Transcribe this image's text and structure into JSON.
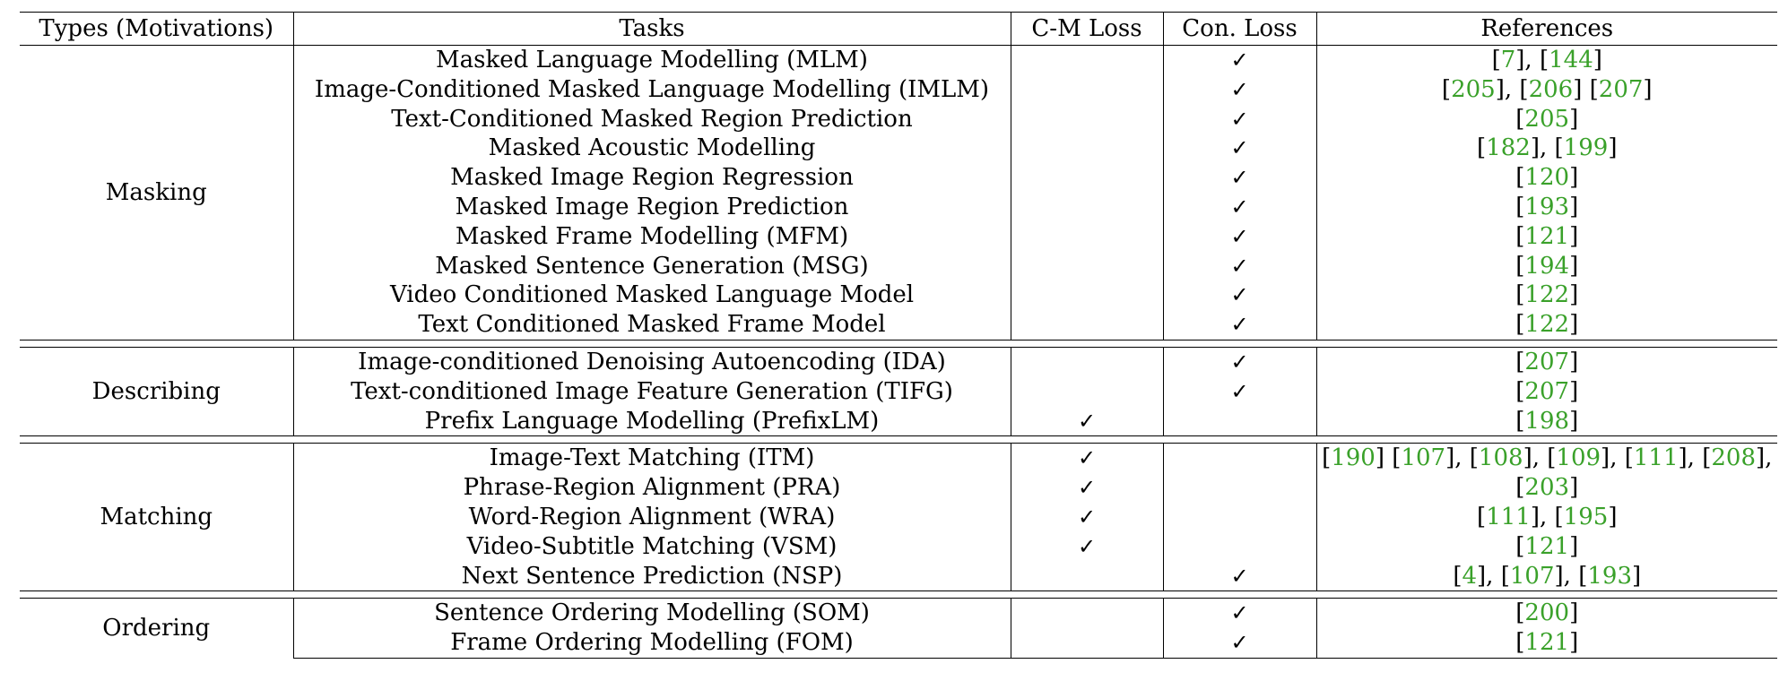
{
  "headers": {
    "type": "Types (Motivations)",
    "task": "Tasks",
    "cm": "C-M Loss",
    "con": "Con. Loss",
    "refs": "References"
  },
  "check_glyph": "✓",
  "groups": [
    {
      "type": "Masking",
      "rows": [
        {
          "task": "Masked Language Modelling (MLM)",
          "cm": false,
          "con": true,
          "refs": [
            [
              "[",
              "7",
              "], "
            ],
            [
              "[",
              "144",
              "]"
            ]
          ]
        },
        {
          "task": "Image-Conditioned Masked Language Modelling (IMLM)",
          "cm": false,
          "con": true,
          "refs": [
            [
              "[",
              "205",
              "], "
            ],
            [
              "[",
              "206",
              "] "
            ],
            [
              "[",
              "207",
              "]"
            ]
          ]
        },
        {
          "task": "Text-Conditioned Masked Region Prediction",
          "cm": false,
          "con": true,
          "refs": [
            [
              "[",
              "205",
              "]"
            ]
          ]
        },
        {
          "task": "Masked Acoustic Modelling",
          "cm": false,
          "con": true,
          "refs": [
            [
              "[",
              "182",
              "], "
            ],
            [
              "[",
              "199",
              "]"
            ]
          ]
        },
        {
          "task": "Masked Image Region Regression",
          "cm": false,
          "con": true,
          "refs": [
            [
              "[",
              "120",
              "]"
            ]
          ]
        },
        {
          "task": "Masked Image Region Prediction",
          "cm": false,
          "con": true,
          "refs": [
            [
              "[",
              "193",
              "]"
            ]
          ]
        },
        {
          "task": "Masked Frame Modelling (MFM)",
          "cm": false,
          "con": true,
          "refs": [
            [
              "[",
              "121",
              "]"
            ]
          ]
        },
        {
          "task": "Masked Sentence Generation (MSG)",
          "cm": false,
          "con": true,
          "refs": [
            [
              "[",
              "194",
              "]"
            ]
          ]
        },
        {
          "task": "Video Conditioned Masked Language Model",
          "cm": false,
          "con": true,
          "refs": [
            [
              "[",
              "122",
              "]"
            ]
          ]
        },
        {
          "task": "Text Conditioned Masked Frame Model",
          "cm": false,
          "con": true,
          "refs": [
            [
              "[",
              "122",
              "]"
            ]
          ]
        }
      ]
    },
    {
      "type": "Describing",
      "rows": [
        {
          "task": "Image-conditioned Denoising Autoencoding (IDA)",
          "cm": false,
          "con": true,
          "refs": [
            [
              "[",
              "207",
              "]"
            ]
          ]
        },
        {
          "task": "Text-conditioned Image Feature Generation (TIFG)",
          "cm": false,
          "con": true,
          "refs": [
            [
              "[",
              "207",
              "]"
            ]
          ]
        },
        {
          "task": "Prefix Language Modelling (PrefixLM)",
          "cm": true,
          "con": false,
          "refs": [
            [
              "[",
              "198",
              "]"
            ]
          ]
        }
      ]
    },
    {
      "type": "Matching",
      "rows": [
        {
          "task": "Image-Text Matching (ITM)",
          "cm": true,
          "con": false,
          "refs": [
            [
              "[",
              "190",
              "] "
            ],
            [
              "[",
              "107",
              "], "
            ],
            [
              "[",
              "108",
              "], "
            ],
            [
              "[",
              "109",
              "], "
            ],
            [
              "[",
              "111",
              "], "
            ],
            [
              "[",
              "208",
              "],"
            ]
          ]
        },
        {
          "task": "Phrase-Region Alignment (PRA)",
          "cm": true,
          "con": false,
          "refs": [
            [
              "[",
              "203",
              "]"
            ]
          ]
        },
        {
          "task": "Word-Region Alignment (WRA)",
          "cm": true,
          "con": false,
          "refs": [
            [
              "[",
              "111",
              "], "
            ],
            [
              "[",
              "195",
              "]"
            ]
          ]
        },
        {
          "task": "Video-Subtitle Matching (VSM)",
          "cm": true,
          "con": false,
          "refs": [
            [
              "[",
              "121",
              "]"
            ]
          ]
        },
        {
          "task": "Next Sentence Prediction (NSP)",
          "cm": false,
          "con": true,
          "refs": [
            [
              "[",
              "4",
              "], "
            ],
            [
              "[",
              "107",
              "], "
            ],
            [
              "[",
              "193",
              "]"
            ]
          ]
        }
      ]
    },
    {
      "type": "Ordering",
      "rows": [
        {
          "task": "Sentence Ordering Modelling (SOM)",
          "cm": false,
          "con": true,
          "refs": [
            [
              "[",
              "200",
              "]"
            ]
          ]
        },
        {
          "task": "Frame Ordering Modelling (FOM)",
          "cm": false,
          "con": true,
          "refs": [
            [
              "[",
              "121",
              "]"
            ]
          ]
        }
      ]
    }
  ]
}
